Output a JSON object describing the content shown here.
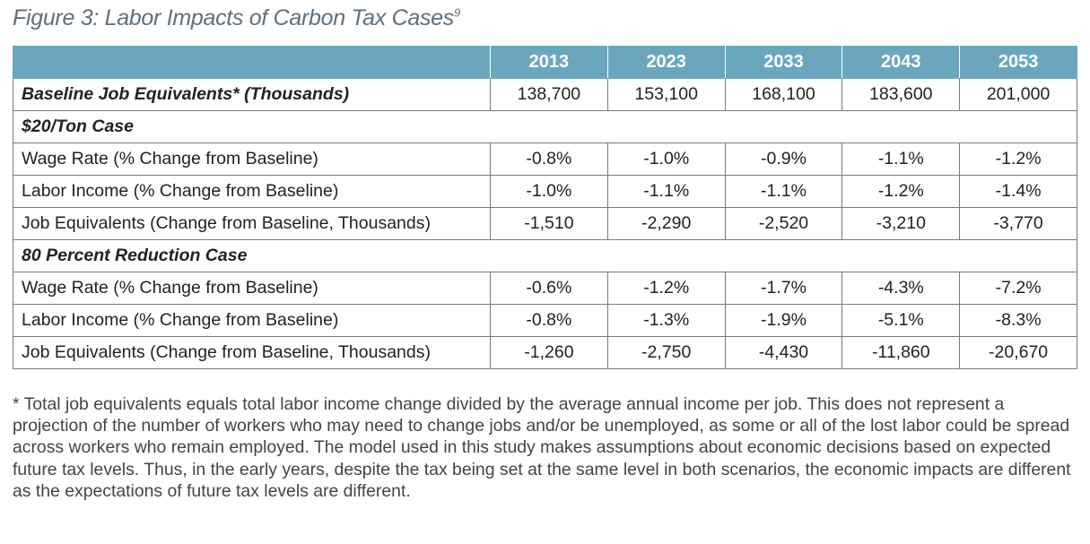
{
  "figure": {
    "title": "Figure 3: Labor Impacts of Carbon Tax Cases",
    "title_superscript": "9"
  },
  "table": {
    "header": [
      "",
      "2013",
      "2023",
      "2033",
      "2043",
      "2053"
    ],
    "baseline": {
      "label": "Baseline Job Equivalents* (Thousands)",
      "values": [
        "138,700",
        "153,100",
        "168,100",
        "183,600",
        "201,000"
      ]
    },
    "sections": [
      {
        "title": "$20/Ton Case",
        "rows": [
          {
            "label": "Wage Rate (% Change from Baseline)",
            "values": [
              "-0.8%",
              "-1.0%",
              "-0.9%",
              "-1.1%",
              "-1.2%"
            ]
          },
          {
            "label": "Labor Income (% Change from Baseline)",
            "values": [
              "-1.0%",
              "-1.1%",
              "-1.1%",
              "-1.2%",
              "-1.4%"
            ]
          },
          {
            "label": "Job Equivalents (Change from Baseline, Thousands)",
            "values": [
              "-1,510",
              "-2,290",
              "-2,520",
              "-3,210",
              "-3,770"
            ]
          }
        ]
      },
      {
        "title": "80 Percent Reduction Case",
        "rows": [
          {
            "label": "Wage Rate (% Change from Baseline)",
            "values": [
              "-0.6%",
              "-1.2%",
              "-1.7%",
              "-4.3%",
              "-7.2%"
            ]
          },
          {
            "label": "Labor Income (% Change from Baseline)",
            "values": [
              "-0.8%",
              "-1.3%",
              "-1.9%",
              "-5.1%",
              "-8.3%"
            ]
          },
          {
            "label": "Job Equivalents (Change from Baseline, Thousands)",
            "values": [
              "-1,260",
              "-2,750",
              "-4,430",
              "-11,860",
              "-20,670"
            ]
          }
        ]
      }
    ]
  },
  "footnote": "* Total job equivalents equals total labor income change divided by the average annual income per job. This does not represent a projection of the number of workers who may need to change jobs and/or be unemployed, as some or all of the lost labor could be spread across workers who remain employed. The model used in this study makes assumptions about economic decisions based on expected future tax levels. Thus, in the early years, despite the tax being set at the same level in both scenarios, the economic impacts are different as the expectations of future tax levels are different.",
  "colors": {
    "header_bg": "#6aa7bf",
    "title_color": "#5f6f7c"
  }
}
